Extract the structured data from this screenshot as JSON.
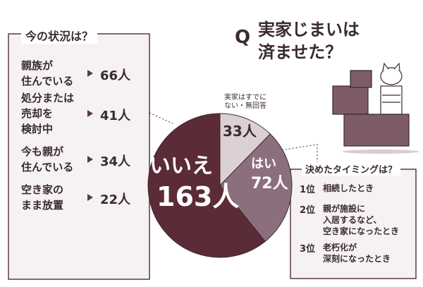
{
  "chart_data": {
    "type": "pie",
    "categories": [
      "実家はすでにない・無回答",
      "はい",
      "いいえ"
    ],
    "values": [
      33,
      72,
      163
    ],
    "value_labels": [
      "33人",
      "72人",
      "163人"
    ],
    "colors": [
      "#dcd0d4",
      "#8c6f7c",
      "#5b2b37"
    ]
  },
  "heading": {
    "mark": "Q",
    "lines": [
      "実家じまいは",
      "済ませた？"
    ]
  },
  "status_panel": {
    "title": "今の状況は？",
    "items": [
      {
        "label": [
          "親族が",
          "住んでいる"
        ],
        "count": "66人"
      },
      {
        "label": [
          "処分または",
          "売却を",
          "検討中"
        ],
        "count": "41人"
      },
      {
        "label": [
          "今も親が",
          "住んでいる"
        ],
        "count": "34人"
      },
      {
        "label": [
          "空き家の",
          "まま放置"
        ],
        "count": "22人"
      }
    ]
  },
  "timing_panel": {
    "title": "決めたタイミングは？",
    "items": [
      {
        "rank": "1位",
        "text": [
          "相続したとき"
        ]
      },
      {
        "rank": "2位",
        "text": [
          "親が施設に",
          "入居するなど、",
          "空き家になったとき"
        ]
      },
      {
        "rank": "3位",
        "text": [
          "老朽化が",
          "深刻になったとき"
        ]
      }
    ]
  }
}
